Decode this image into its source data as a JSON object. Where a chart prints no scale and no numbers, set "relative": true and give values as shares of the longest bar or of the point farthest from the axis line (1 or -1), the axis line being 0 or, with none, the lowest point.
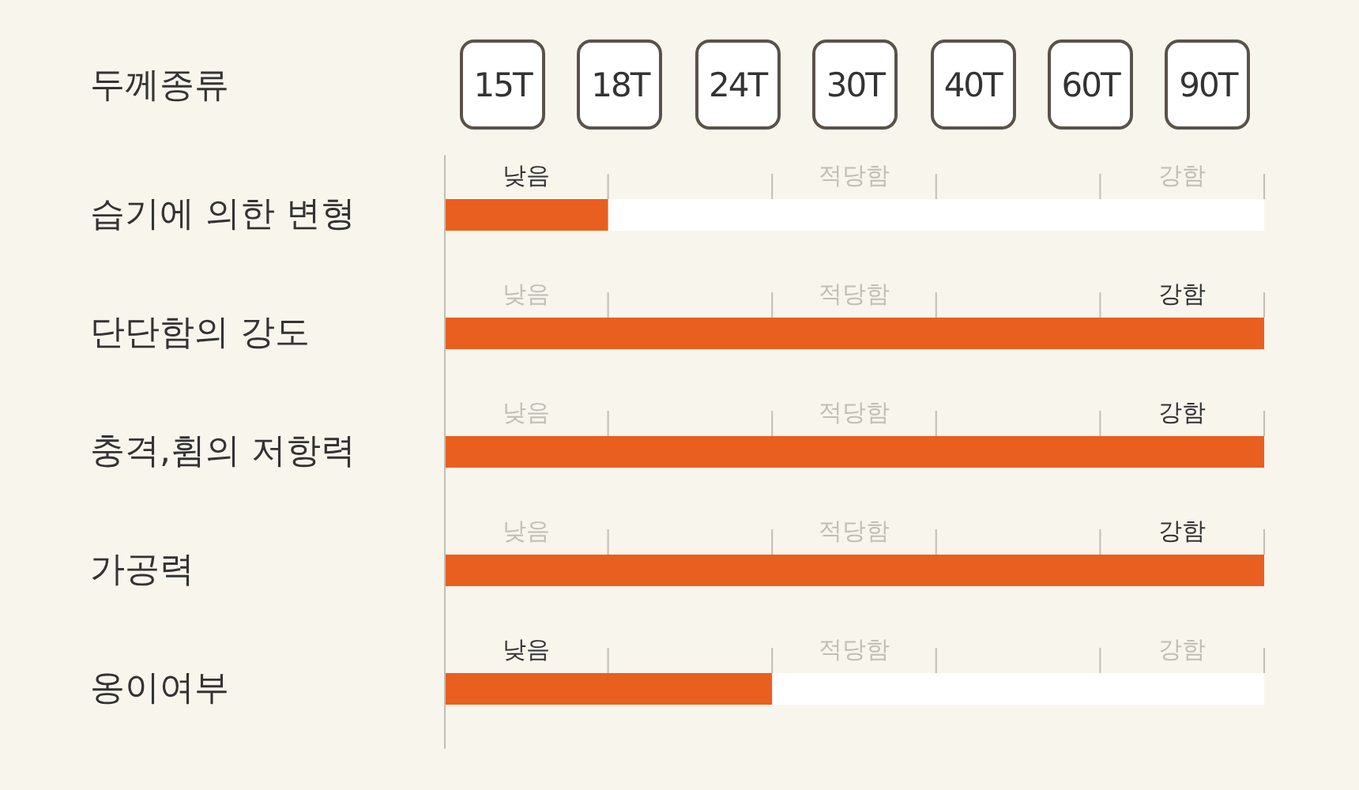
{
  "chart_data": [
    {
      "type": "other",
      "title": "두께종류",
      "annotations": [
        "15T",
        "18T",
        "24T",
        "30T",
        "40T",
        "60T",
        "90T"
      ]
    },
    {
      "type": "bar",
      "orientation": "horizontal",
      "relative": true,
      "categories": [
        "습기에 의한 변형",
        "단단함의 강도",
        "충격,휨의 저항력",
        "가공력",
        "옹이여부"
      ],
      "values": [
        0.2,
        1,
        1,
        1,
        0.4
      ],
      "color": "#e95f20",
      "annotations": [
        "낮음",
        "적당함",
        "강함"
      ]
    }
  ]
}
